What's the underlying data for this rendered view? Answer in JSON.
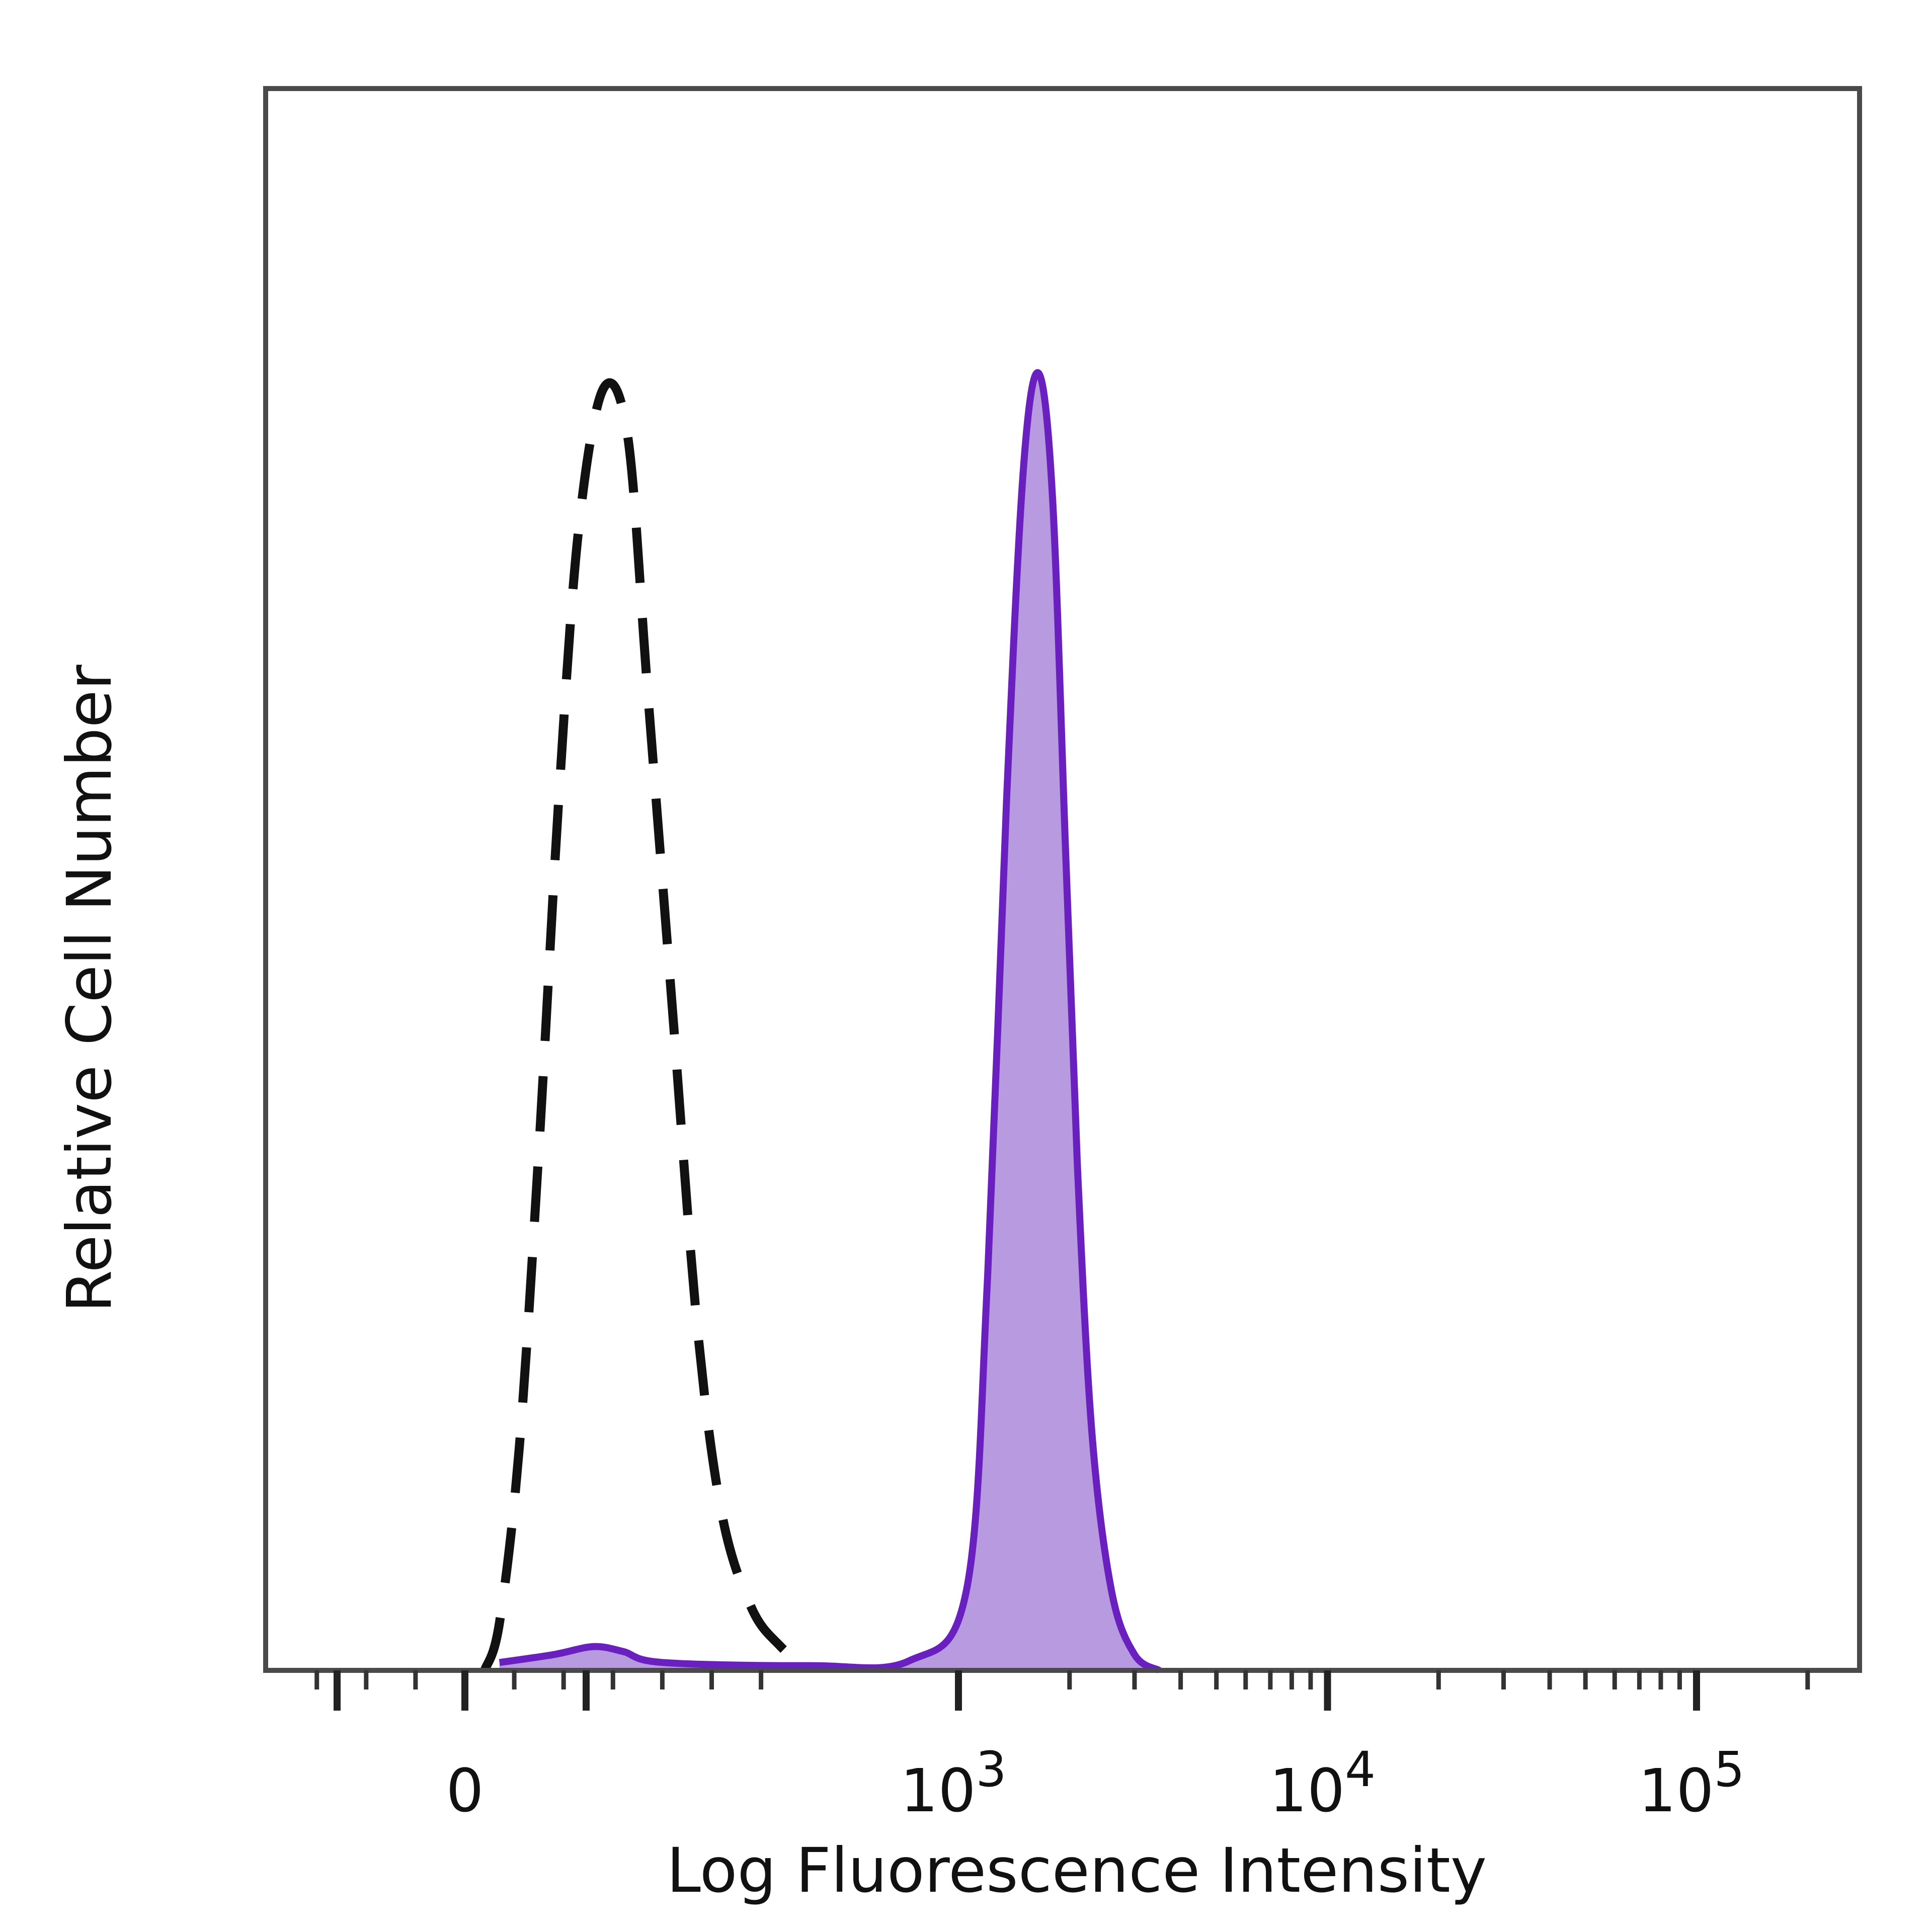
{
  "chart_data": {
    "type": "area",
    "title": "",
    "xlabel": "Log Fluorescence Intensity",
    "ylabel": "Relative Cell Number",
    "x_scale": "biexponential (linear near 0, log above 10^3)",
    "x_ticks": [
      {
        "value": 0,
        "label": "0"
      },
      {
        "value": 1000,
        "label": "10",
        "exp": "3"
      },
      {
        "value": 10000,
        "label": "10",
        "exp": "4"
      },
      {
        "value": 100000,
        "label": "10",
        "exp": "5"
      }
    ],
    "ylim": [
      0,
      1.0
    ],
    "grid": false,
    "legend": "none",
    "series": [
      {
        "style": "dashed",
        "fill": false,
        "color": "#111111",
        "peak_x": 280,
        "peak_y": 0.81,
        "points": [
          [
            40,
            0.0
          ],
          [
            70,
            0.03
          ],
          [
            110,
            0.14
          ],
          [
            150,
            0.33
          ],
          [
            190,
            0.55
          ],
          [
            230,
            0.72
          ],
          [
            280,
            0.81
          ],
          [
            330,
            0.78
          ],
          [
            370,
            0.62
          ],
          [
            420,
            0.42
          ],
          [
            470,
            0.22
          ],
          [
            520,
            0.1
          ],
          [
            580,
            0.04
          ],
          [
            640,
            0.015
          ],
          [
            700,
            0.0
          ]
        ]
      },
      {
        "style": "solid",
        "fill": true,
        "color": "#6a1fbf",
        "fill_color": "#b89ae0",
        "peak_x": 1650,
        "peak_y": 0.82,
        "points": [
          [
            70,
            0.005
          ],
          [
            180,
            0.01
          ],
          [
            260,
            0.015
          ],
          [
            320,
            0.012
          ],
          [
            400,
            0.005
          ],
          [
            700,
            0.003
          ],
          [
            900,
            0.006
          ],
          [
            1050,
            0.05
          ],
          [
            1200,
            0.25
          ],
          [
            1350,
            0.55
          ],
          [
            1500,
            0.76
          ],
          [
            1650,
            0.82
          ],
          [
            1800,
            0.74
          ],
          [
            1950,
            0.52
          ],
          [
            2100,
            0.32
          ],
          [
            2300,
            0.15
          ],
          [
            2600,
            0.05
          ],
          [
            3000,
            0.01
          ],
          [
            3500,
            0.0
          ]
        ]
      }
    ]
  }
}
